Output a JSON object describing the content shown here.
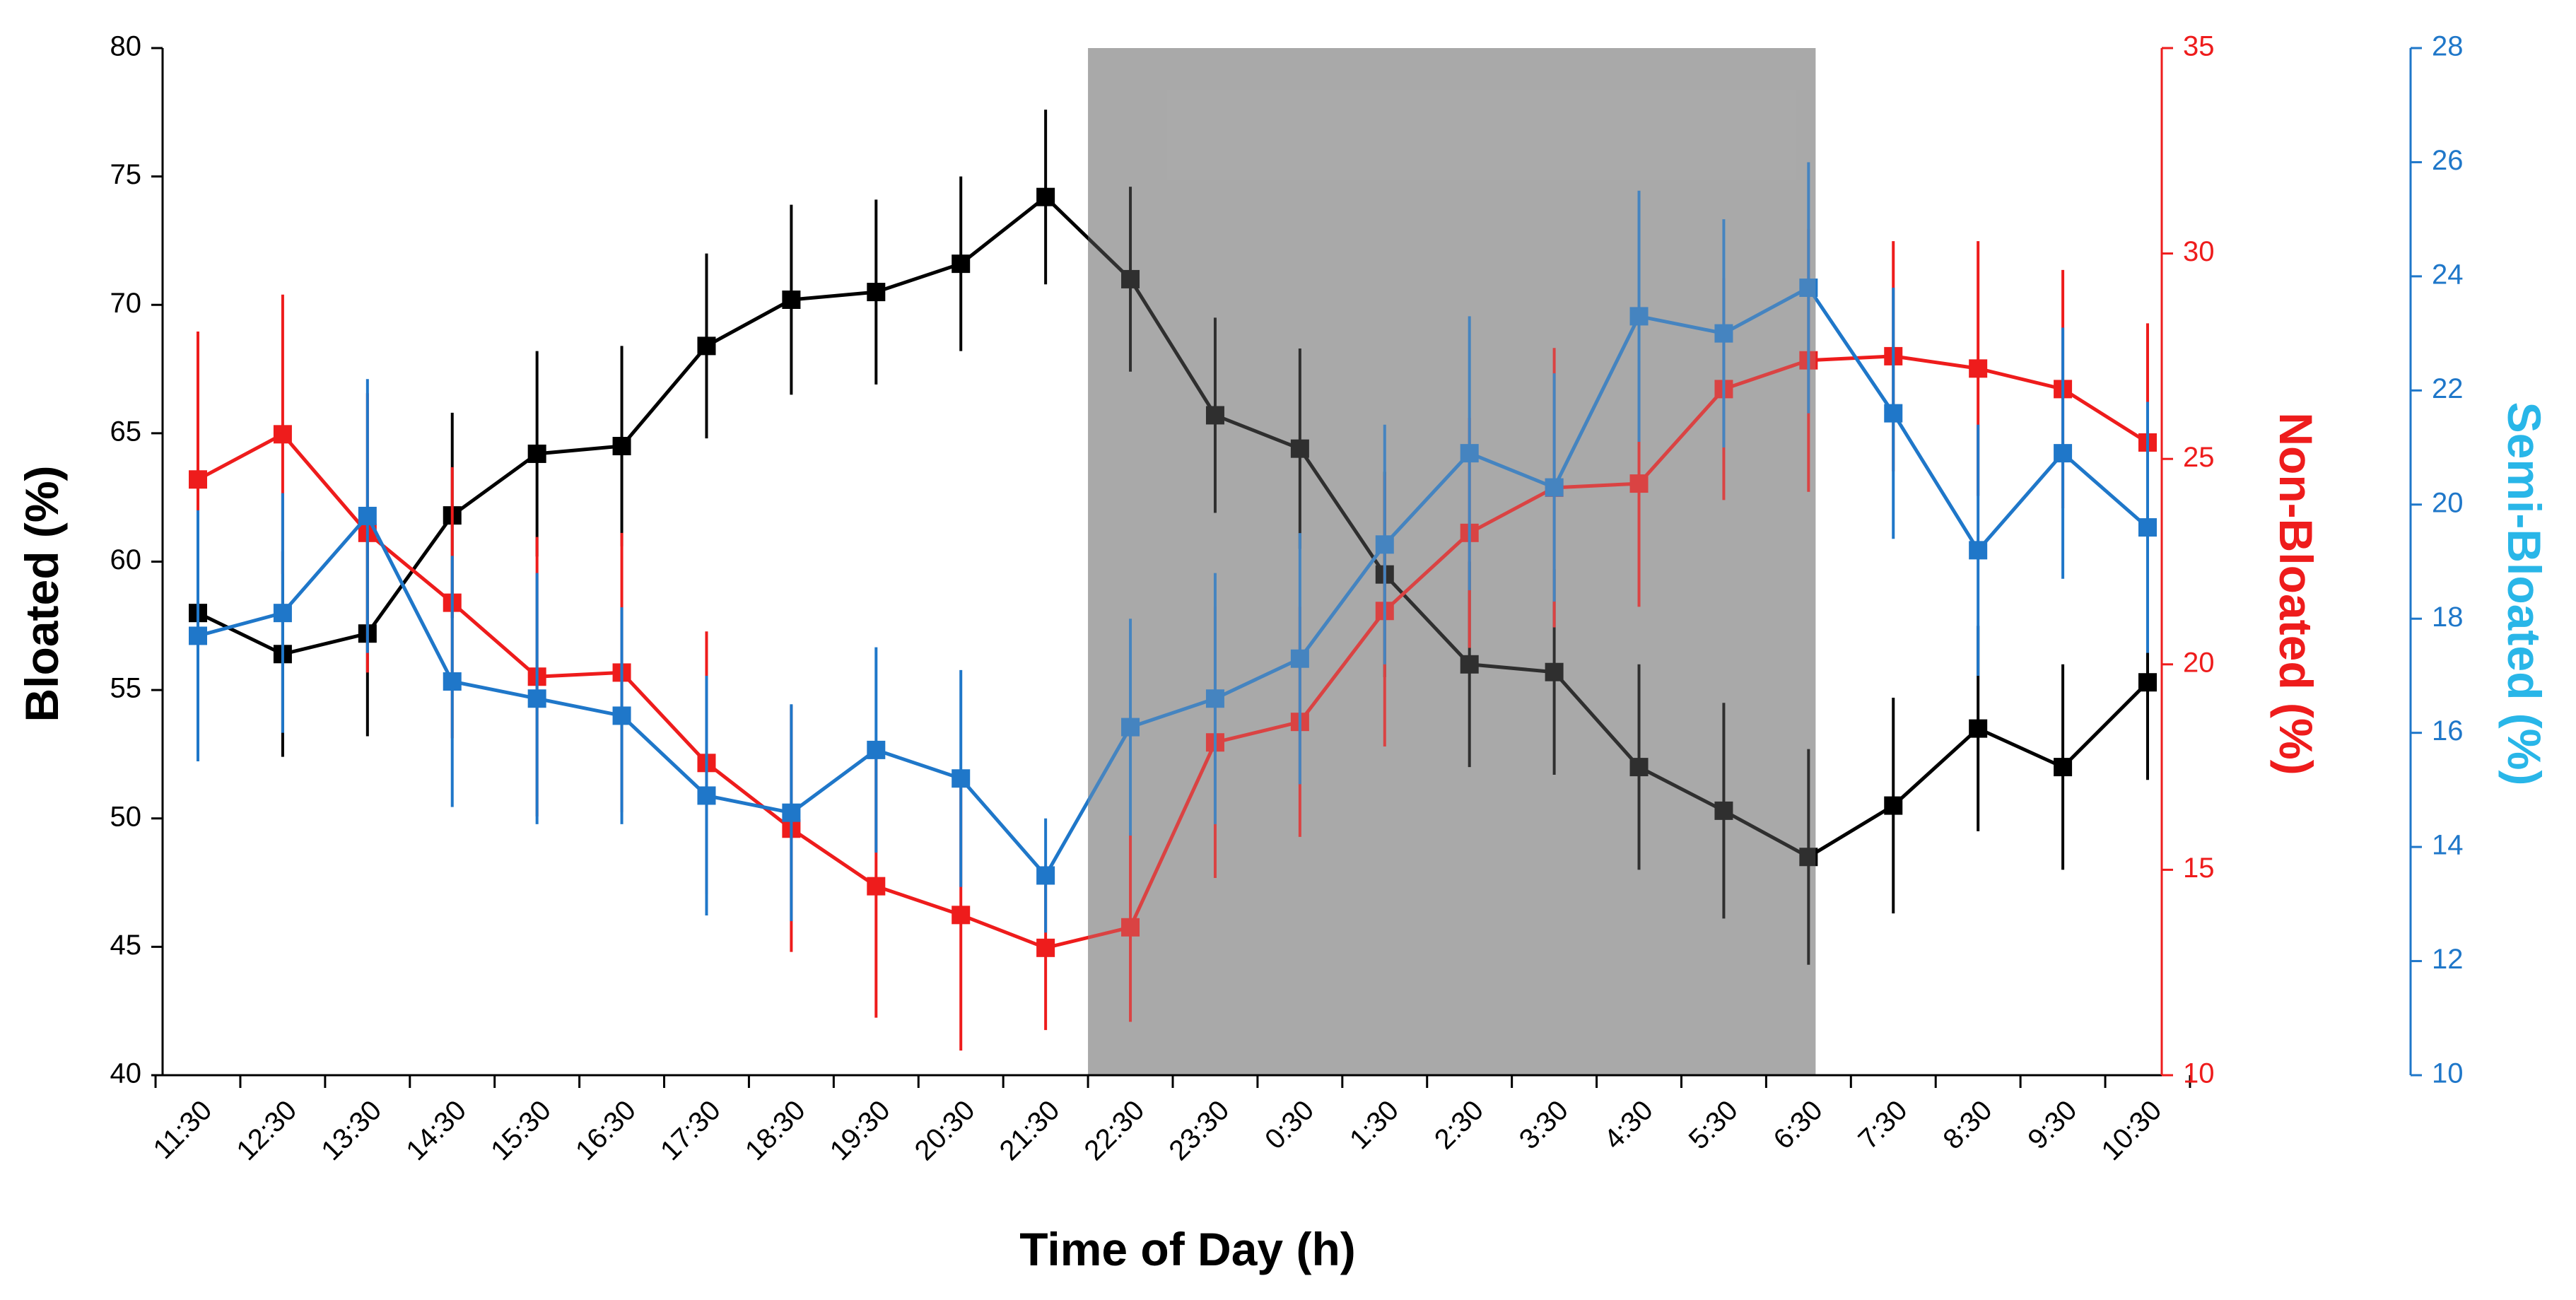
{
  "chart_data": {
    "type": "line",
    "x_categories": [
      "11:30",
      "12:30",
      "13:30",
      "14:30",
      "15:30",
      "16:30",
      "17:30",
      "18:30",
      "19:30",
      "20:30",
      "21:30",
      "22:30",
      "23:30",
      "0:30",
      "1:30",
      "2:30",
      "3:30",
      "4:30",
      "5:30",
      "6:30",
      "7:30",
      "8:30",
      "9:30",
      "10:30"
    ],
    "xlabel": "Time of Day (h)",
    "shaded_region": {
      "from": "21:30",
      "to": "6:30",
      "color": "#aaaaaa"
    },
    "axes": {
      "left": {
        "label": "Bloated (%)",
        "ylim": [
          40,
          80
        ],
        "ticks": [
          40,
          45,
          50,
          55,
          60,
          65,
          70,
          75,
          80
        ],
        "tick_labels": [
          "40",
          "45",
          "50",
          "55",
          "60",
          "65",
          "70",
          "75",
          "80"
        ],
        "color": "#000000"
      },
      "mid": {
        "label": "Non-Bloated (%)",
        "ylim": [
          10,
          35
        ],
        "ticks": [
          10,
          15,
          20,
          25,
          30,
          35
        ],
        "tick_labels": [
          "10",
          "15",
          "20",
          "25",
          "30",
          "35"
        ],
        "color": "#ee1c1c"
      },
      "right": {
        "label": "Semi-Bloated (%)",
        "ylim": [
          10,
          28
        ],
        "ticks": [
          10,
          12,
          14,
          16,
          18,
          20,
          22,
          24,
          26,
          28
        ],
        "tick_labels": [
          "10",
          "12",
          "14",
          "16",
          "18",
          "20",
          "22",
          "24",
          "26",
          "28"
        ],
        "color": "#1f77c9"
      }
    },
    "series": [
      {
        "name": "Bloated",
        "axis": "left",
        "color": "#000000",
        "values": [
          58.0,
          56.4,
          57.2,
          61.8,
          64.2,
          64.5,
          68.4,
          70.2,
          70.5,
          71.6,
          74.2,
          71.0,
          65.7,
          64.4,
          59.5,
          56.0,
          55.7,
          52.0,
          50.3,
          48.5,
          50.5,
          53.5,
          52.0,
          55.3
        ],
        "errors": [
          4.0,
          4.0,
          4.0,
          4.0,
          4.0,
          3.9,
          3.6,
          3.7,
          3.6,
          3.4,
          3.4,
          3.6,
          3.8,
          3.9,
          4.0,
          4.0,
          4.0,
          4.0,
          4.2,
          4.2,
          4.2,
          4.0,
          4.0,
          3.8
        ]
      },
      {
        "name": "Non-Bloated",
        "axis": "mid",
        "color": "#ee1c1c",
        "values": [
          24.5,
          25.6,
          23.2,
          21.5,
          19.7,
          19.8,
          17.6,
          16.0,
          14.6,
          13.9,
          13.1,
          13.6,
          18.1,
          18.6,
          21.3,
          23.2,
          24.3,
          24.4,
          26.7,
          27.4,
          27.5,
          27.2,
          26.7,
          25.4
        ],
        "errors": [
          3.6,
          3.4,
          3.4,
          3.3,
          3.4,
          3.4,
          3.2,
          3.0,
          3.2,
          3.3,
          2.0,
          2.3,
          3.3,
          2.8,
          3.3,
          2.8,
          3.4,
          3.0,
          2.7,
          3.2,
          2.8,
          3.1,
          2.9,
          2.9
        ]
      },
      {
        "name": "Semi-Bloated",
        "axis": "right",
        "color": "#1f77c9",
        "values": [
          17.7,
          18.1,
          19.8,
          16.9,
          16.6,
          16.3,
          14.9,
          14.6,
          15.7,
          15.2,
          13.5,
          16.1,
          16.6,
          17.3,
          19.3,
          20.9,
          20.3,
          23.3,
          23.0,
          23.8,
          21.6,
          19.2,
          20.9,
          19.6
        ],
        "errors": [
          2.2,
          2.1,
          2.4,
          2.2,
          2.2,
          1.9,
          2.1,
          1.9,
          1.8,
          1.9,
          1.0,
          1.9,
          2.2,
          2.2,
          2.1,
          2.4,
          2.0,
          2.2,
          2.0,
          2.2,
          2.2,
          2.2,
          2.2,
          2.2
        ]
      }
    ]
  }
}
